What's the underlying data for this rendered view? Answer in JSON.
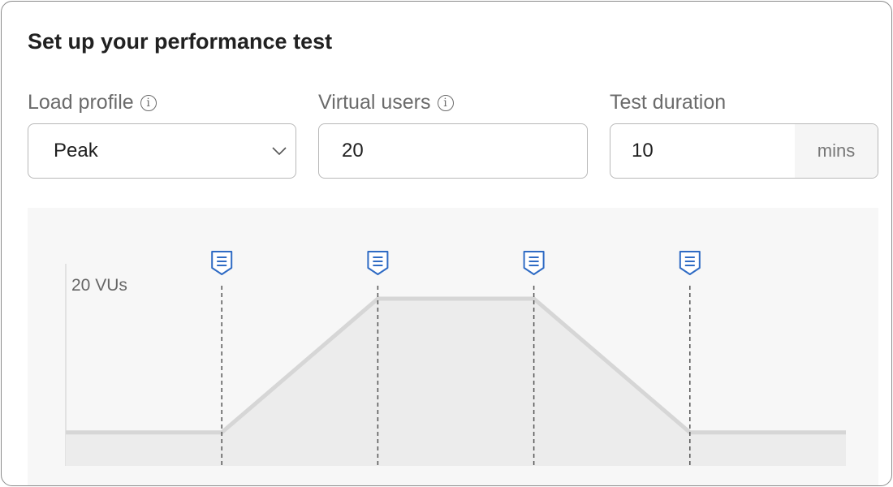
{
  "title": "Set up your performance test",
  "load_profile": {
    "label": "Load profile",
    "info_icon": "info-icon",
    "value": "Peak"
  },
  "virtual_users": {
    "label": "Virtual users",
    "info_icon": "info-icon",
    "value": "20"
  },
  "test_duration": {
    "label": "Test duration",
    "value": "10",
    "unit": "mins"
  },
  "chart_data": {
    "type": "area",
    "y_label": "20 VUs",
    "stage_boundaries": [
      0,
      1,
      2,
      3,
      4,
      5
    ],
    "points": [
      [
        0,
        4
      ],
      [
        1,
        4
      ],
      [
        2,
        20
      ],
      [
        3,
        20
      ],
      [
        4,
        4
      ],
      [
        5,
        4
      ]
    ],
    "ylim": [
      0,
      20
    ],
    "markers": [
      1,
      2,
      3,
      4
    ],
    "marker_icon": "log-marker-icon",
    "colors": {
      "line": "#d6d6d6",
      "fill": "#ececec",
      "marker": "#2f6bc4",
      "guide": "#555555"
    }
  }
}
